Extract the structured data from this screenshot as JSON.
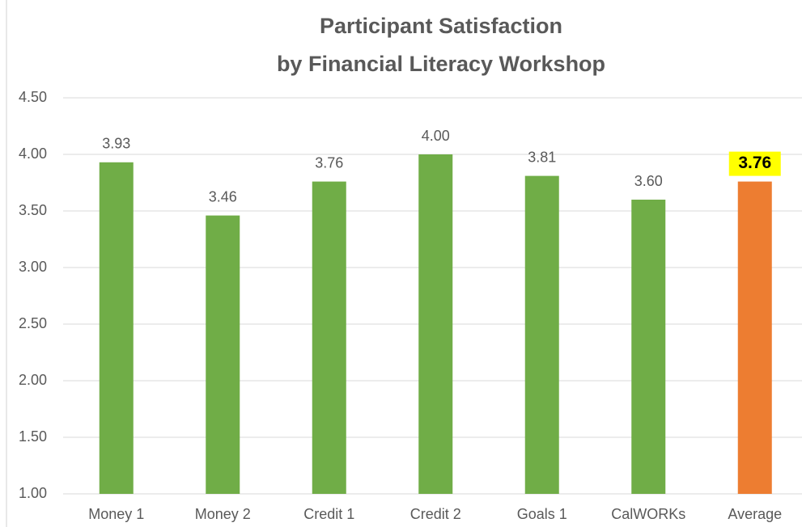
{
  "chart_data": {
    "type": "bar",
    "title": [
      "Participant Satisfaction",
      "by Financial Literacy Workshop"
    ],
    "categories": [
      "Money 1",
      "Money 2",
      "Credit 1",
      "Credit 2",
      "Goals 1",
      "CalWORKs",
      "Average"
    ],
    "values": [
      3.93,
      3.46,
      3.76,
      4.0,
      3.81,
      3.6,
      3.76
    ],
    "value_labels": [
      "3.93",
      "3.46",
      "3.76",
      "4.00",
      "3.81",
      "3.60",
      "3.76"
    ],
    "colors": [
      "#70ad47",
      "#70ad47",
      "#70ad47",
      "#70ad47",
      "#70ad47",
      "#70ad47",
      "#ed7d31"
    ],
    "label_highlight": [
      null,
      null,
      null,
      null,
      null,
      null,
      "#ffff00"
    ],
    "ylim": [
      1,
      4.5
    ],
    "yticks": [
      {
        "value": 1,
        "label": "1.00"
      },
      {
        "value": 1.5,
        "label": "1.50"
      },
      {
        "value": 2,
        "label": "2.00"
      },
      {
        "value": 2.5,
        "label": "2.50"
      },
      {
        "value": 3,
        "label": "3.00"
      },
      {
        "value": 3.5,
        "label": "3.50"
      },
      {
        "value": 4,
        "label": "4.00"
      },
      {
        "value": 4.5,
        "label": "4.50"
      }
    ],
    "grid": true
  }
}
